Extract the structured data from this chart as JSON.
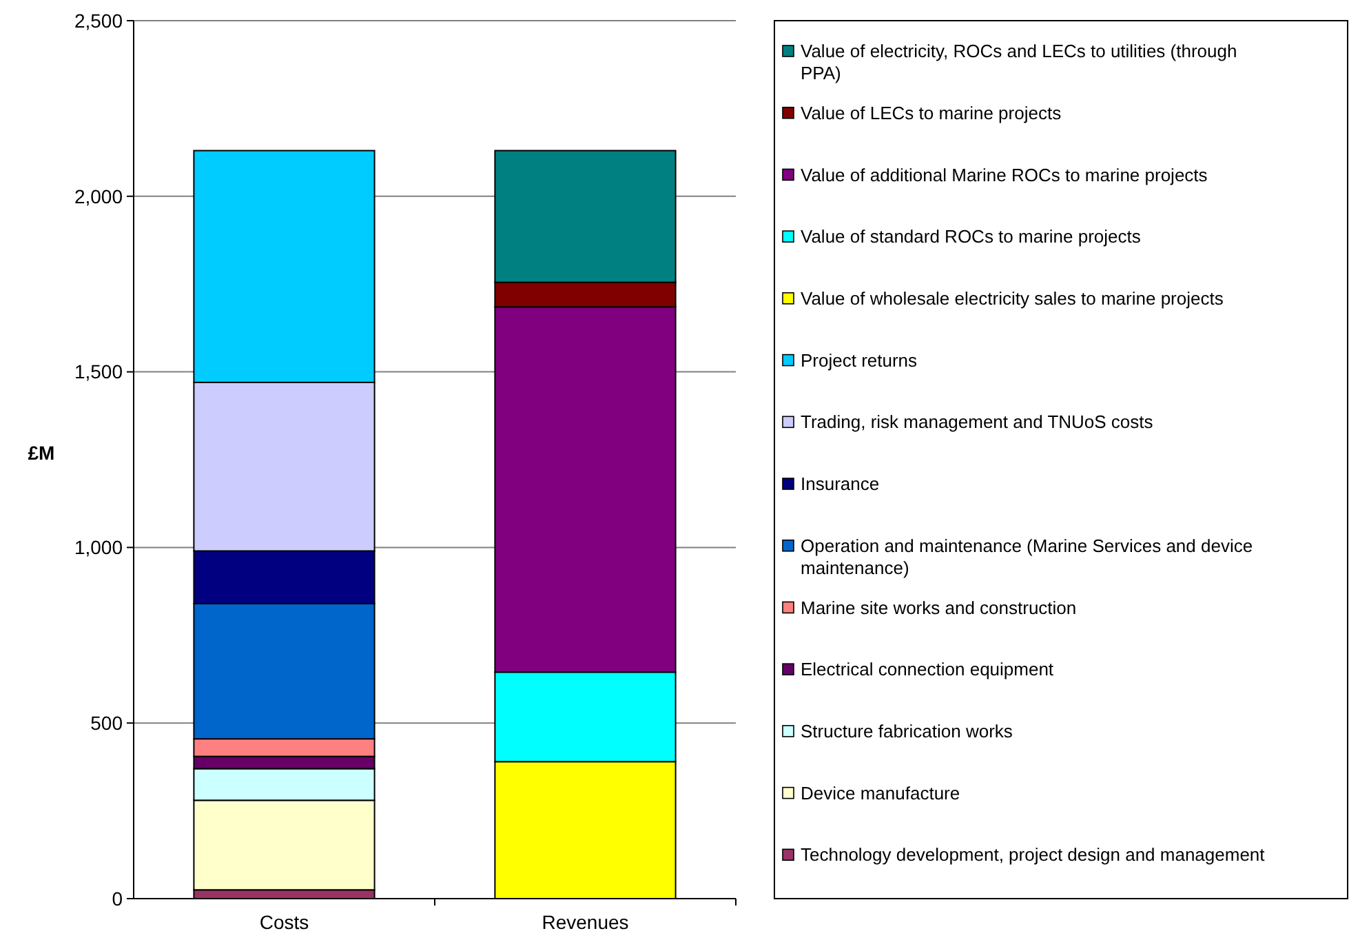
{
  "chart_data": {
    "type": "bar",
    "stacked": true,
    "ylabel": "£M",
    "categories": [
      "Costs",
      "Revenues"
    ],
    "ylim": [
      0,
      2500
    ],
    "yticks": [
      {
        "value": 0,
        "label": "0"
      },
      {
        "value": 500,
        "label": "500"
      },
      {
        "value": 1000,
        "label": "1,000"
      },
      {
        "value": 1500,
        "label": "1,500"
      },
      {
        "value": 2000,
        "label": "2,000"
      },
      {
        "value": 2500,
        "label": "2,500"
      }
    ],
    "grid": "y",
    "legend": "right",
    "series": [
      {
        "name": "Technology development, project design and management",
        "color": "#993366",
        "values": [
          25,
          null
        ]
      },
      {
        "name": "Device manufacture",
        "color": "#ffffcc",
        "values": [
          255,
          null
        ]
      },
      {
        "name": "Structure fabrication works",
        "color": "#ccffff",
        "values": [
          90,
          null
        ]
      },
      {
        "name": "Electrical connection equipment",
        "color": "#660066",
        "values": [
          35,
          null
        ]
      },
      {
        "name": "Marine site works and construction",
        "color": "#ff8080",
        "values": [
          50,
          null
        ]
      },
      {
        "name": "Operation and maintenance (Marine Services and device maintenance)",
        "color": "#0066cc",
        "values": [
          385,
          null
        ]
      },
      {
        "name": "Insurance",
        "color": "#000080",
        "values": [
          150,
          null
        ]
      },
      {
        "name": "Trading, risk management and TNUoS costs",
        "color": "#ccccff",
        "values": [
          480,
          null
        ]
      },
      {
        "name": "Project returns",
        "color": "#00ccff",
        "values": [
          660,
          null
        ]
      },
      {
        "name": "Value of wholesale electricity sales to marine projects",
        "color": "#ffff00",
        "values": [
          null,
          390
        ]
      },
      {
        "name": "Value of standard ROCs to marine projects",
        "color": "#00ffff",
        "values": [
          null,
          255
        ]
      },
      {
        "name": "Value of additional Marine ROCs to marine projects",
        "color": "#800080",
        "values": [
          null,
          1040
        ]
      },
      {
        "name": "Value of LECs to marine projects",
        "color": "#800000",
        "values": [
          null,
          70
        ]
      },
      {
        "name": "Value of electricity, ROCs and LECs to utilities (through PPA)",
        "color": "#008080",
        "values": [
          null,
          375
        ]
      }
    ]
  }
}
